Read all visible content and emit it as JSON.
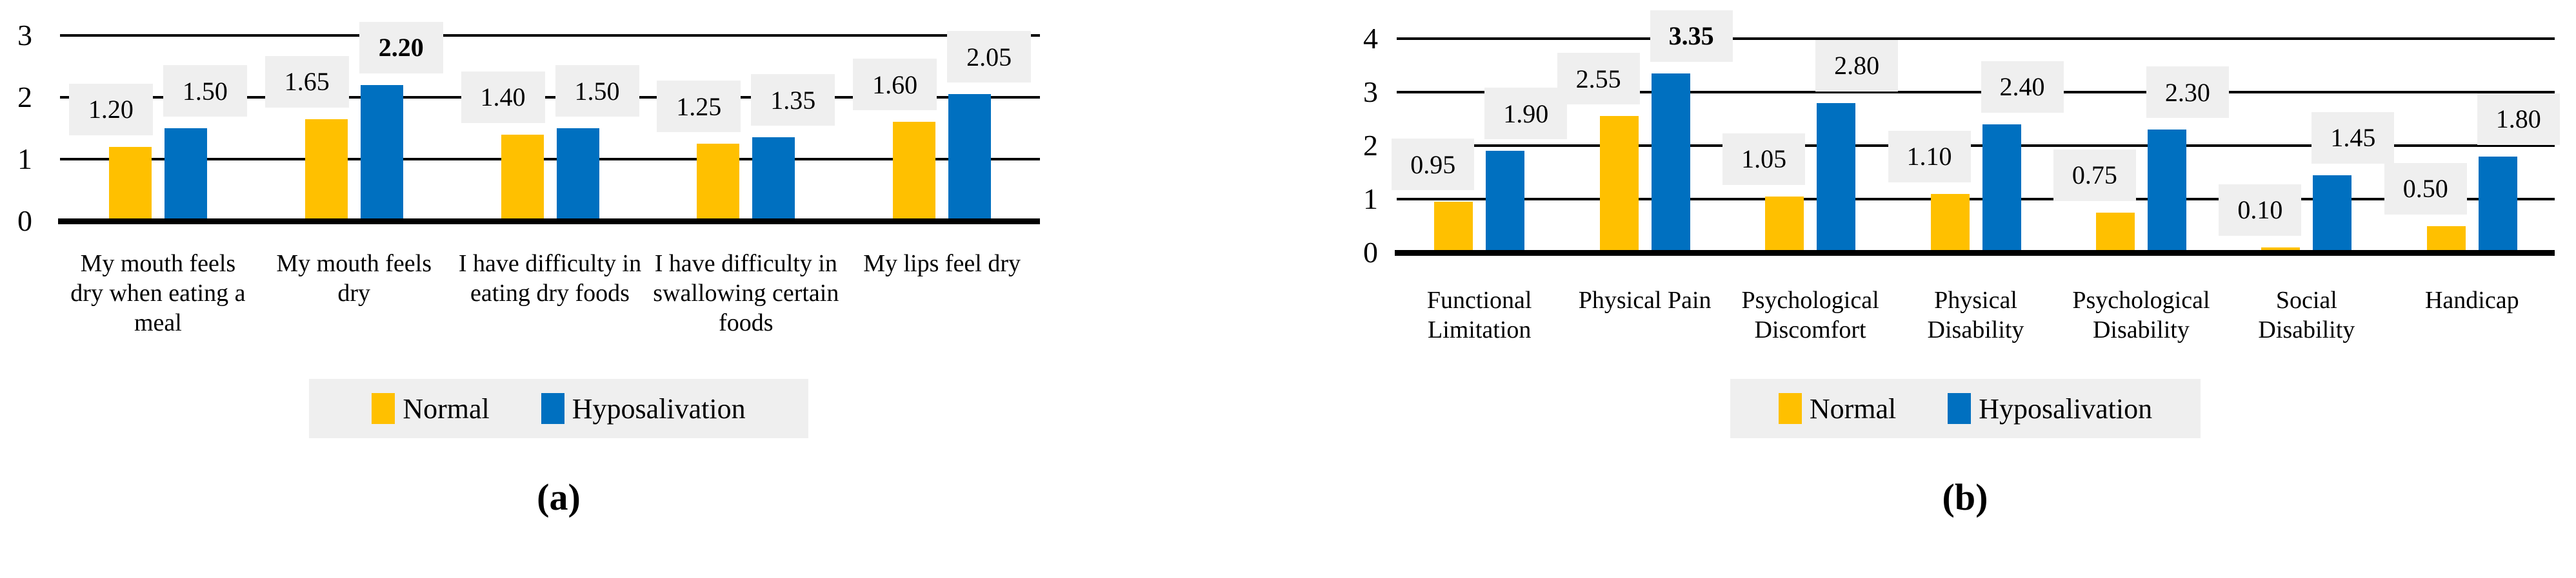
{
  "chart_data": [
    {
      "type": "bar",
      "caption": "(a)",
      "title": "",
      "xlabel": "",
      "ylabel": "",
      "ylim": [
        0,
        3
      ],
      "yticks": [
        0,
        1,
        2,
        3
      ],
      "grid": "horizontal",
      "legend_position": "bottom",
      "categories": [
        "My mouth feels dry when eating a meal",
        "My mouth feels dry",
        "I have difficulty in eating dry foods",
        "I have difficulty in swallowing certain foods",
        "My lips feel dry"
      ],
      "series": [
        {
          "name": "Normal",
          "color": "#FFC000",
          "values": [
            1.2,
            1.65,
            1.4,
            1.25,
            1.6
          ]
        },
        {
          "name": "Hyposalivation",
          "color": "#0070C0",
          "values": [
            1.5,
            2.2,
            1.5,
            1.35,
            2.05
          ]
        }
      ],
      "bold_value_labels": [
        [
          1,
          1
        ]
      ],
      "value_label_format": "2dp",
      "value_label_bg": "#efefef",
      "legend_bg": "#efefef",
      "axis_color": "#000000"
    },
    {
      "type": "bar",
      "caption": "(b)",
      "title": "",
      "xlabel": "",
      "ylabel": "",
      "ylim": [
        0,
        4
      ],
      "yticks": [
        0,
        1,
        2,
        3,
        4
      ],
      "grid": "horizontal",
      "legend_position": "bottom",
      "categories": [
        "Functional Limitation",
        "Physical Pain",
        "Psychological Discomfort",
        "Physical Disability",
        "Psychological Disability",
        "Social Disability",
        "Handicap"
      ],
      "series": [
        {
          "name": "Normal",
          "color": "#FFC000",
          "values": [
            0.95,
            2.55,
            1.05,
            1.1,
            0.75,
            0.1,
            0.5
          ]
        },
        {
          "name": "Hyposalivation",
          "color": "#0070C0",
          "values": [
            1.9,
            3.35,
            2.8,
            2.4,
            2.3,
            1.45,
            1.8
          ]
        }
      ],
      "bold_value_labels": [
        [
          1,
          1
        ]
      ],
      "value_label_format": "2dp",
      "value_label_bg": "#efefef",
      "legend_bg": "#efefef",
      "axis_color": "#000000"
    }
  ]
}
